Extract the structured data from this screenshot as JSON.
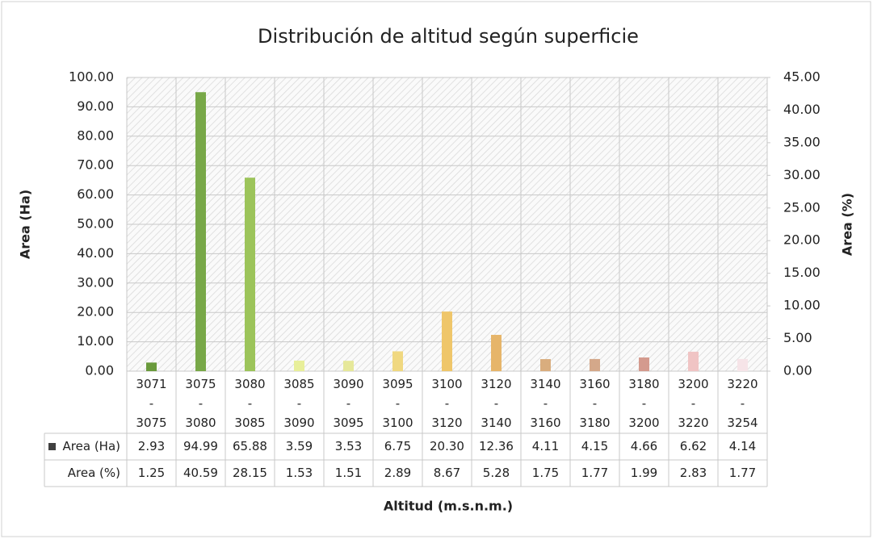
{
  "chart_data": {
    "type": "bar",
    "title": "Distribución de altitud según superficie",
    "x_label": "Altitud (m.s.n.m.)",
    "y_label": "Area (Ha)",
    "y2_label": "Area (%)",
    "categories": [
      "3071 - 3075",
      "3075 - 3080",
      "3080 - 3085",
      "3085 - 3090",
      "3090 - 3095",
      "3095 - 3100",
      "3100 - 3120",
      "3120 - 3140",
      "3140 - 3160",
      "3160 - 3180",
      "3180 - 3200",
      "3200 - 3220",
      "3220 - 3254"
    ],
    "series": [
      {
        "name": "Area (Ha)",
        "color": "#404040",
        "colors": [
          "#6a9a3c",
          "#78a848",
          "#9cc45a",
          "#e8ef9a",
          "#e6e89a",
          "#f0d880",
          "#efc66a",
          "#e6b56a",
          "#d9ad7e",
          "#d4a88a",
          "#d49a8e",
          "#f0c4c4",
          "#f6e4e8"
        ],
        "values": [
          2.93,
          94.99,
          65.88,
          3.59,
          3.53,
          6.75,
          20.3,
          12.36,
          4.11,
          4.15,
          4.66,
          6.62,
          4.14
        ],
        "value_labels": [
          "2.93",
          "94.99",
          "65.88",
          "3.59",
          "3.53",
          "6.75",
          "20.30",
          "12.36",
          "4.11",
          "4.15",
          "4.66",
          "6.62",
          "4.14"
        ]
      },
      {
        "name": "Area (%)",
        "axis": "y2",
        "values": [
          1.25,
          40.59,
          28.15,
          1.53,
          1.51,
          2.89,
          8.67,
          5.28,
          1.75,
          1.77,
          1.99,
          2.83,
          1.77
        ],
        "value_labels": [
          "1.25",
          "40.59",
          "28.15",
          "1.53",
          "1.51",
          "2.89",
          "8.67",
          "5.28",
          "1.75",
          "1.77",
          "1.99",
          "2.83",
          "1.77"
        ]
      }
    ],
    "ylim": [
      0,
      100
    ],
    "yticks": [
      {
        "value": 0,
        "label": "0.00"
      },
      {
        "value": 10,
        "label": "10.00"
      },
      {
        "value": 20,
        "label": "20.00"
      },
      {
        "value": 30,
        "label": "30.00"
      },
      {
        "value": 40,
        "label": "40.00"
      },
      {
        "value": 50,
        "label": "50.00"
      },
      {
        "value": 60,
        "label": "60.00"
      },
      {
        "value": 70,
        "label": "70.00"
      },
      {
        "value": 80,
        "label": "80.00"
      },
      {
        "value": 90,
        "label": "90.00"
      },
      {
        "value": 100,
        "label": "100.00"
      }
    ],
    "y2lim": [
      0,
      45
    ],
    "y2ticks": [
      {
        "value": 0,
        "label": "0.00"
      },
      {
        "value": 5,
        "label": "5.00"
      },
      {
        "value": 10,
        "label": "10.00"
      },
      {
        "value": 15,
        "label": "15.00"
      },
      {
        "value": 20,
        "label": "20.00"
      },
      {
        "value": 25,
        "label": "25.00"
      },
      {
        "value": 30,
        "label": "30.00"
      },
      {
        "value": 35,
        "label": "35.00"
      },
      {
        "value": 40,
        "label": "40.00"
      },
      {
        "value": 45,
        "label": "45.00"
      }
    ],
    "grid": true
  }
}
